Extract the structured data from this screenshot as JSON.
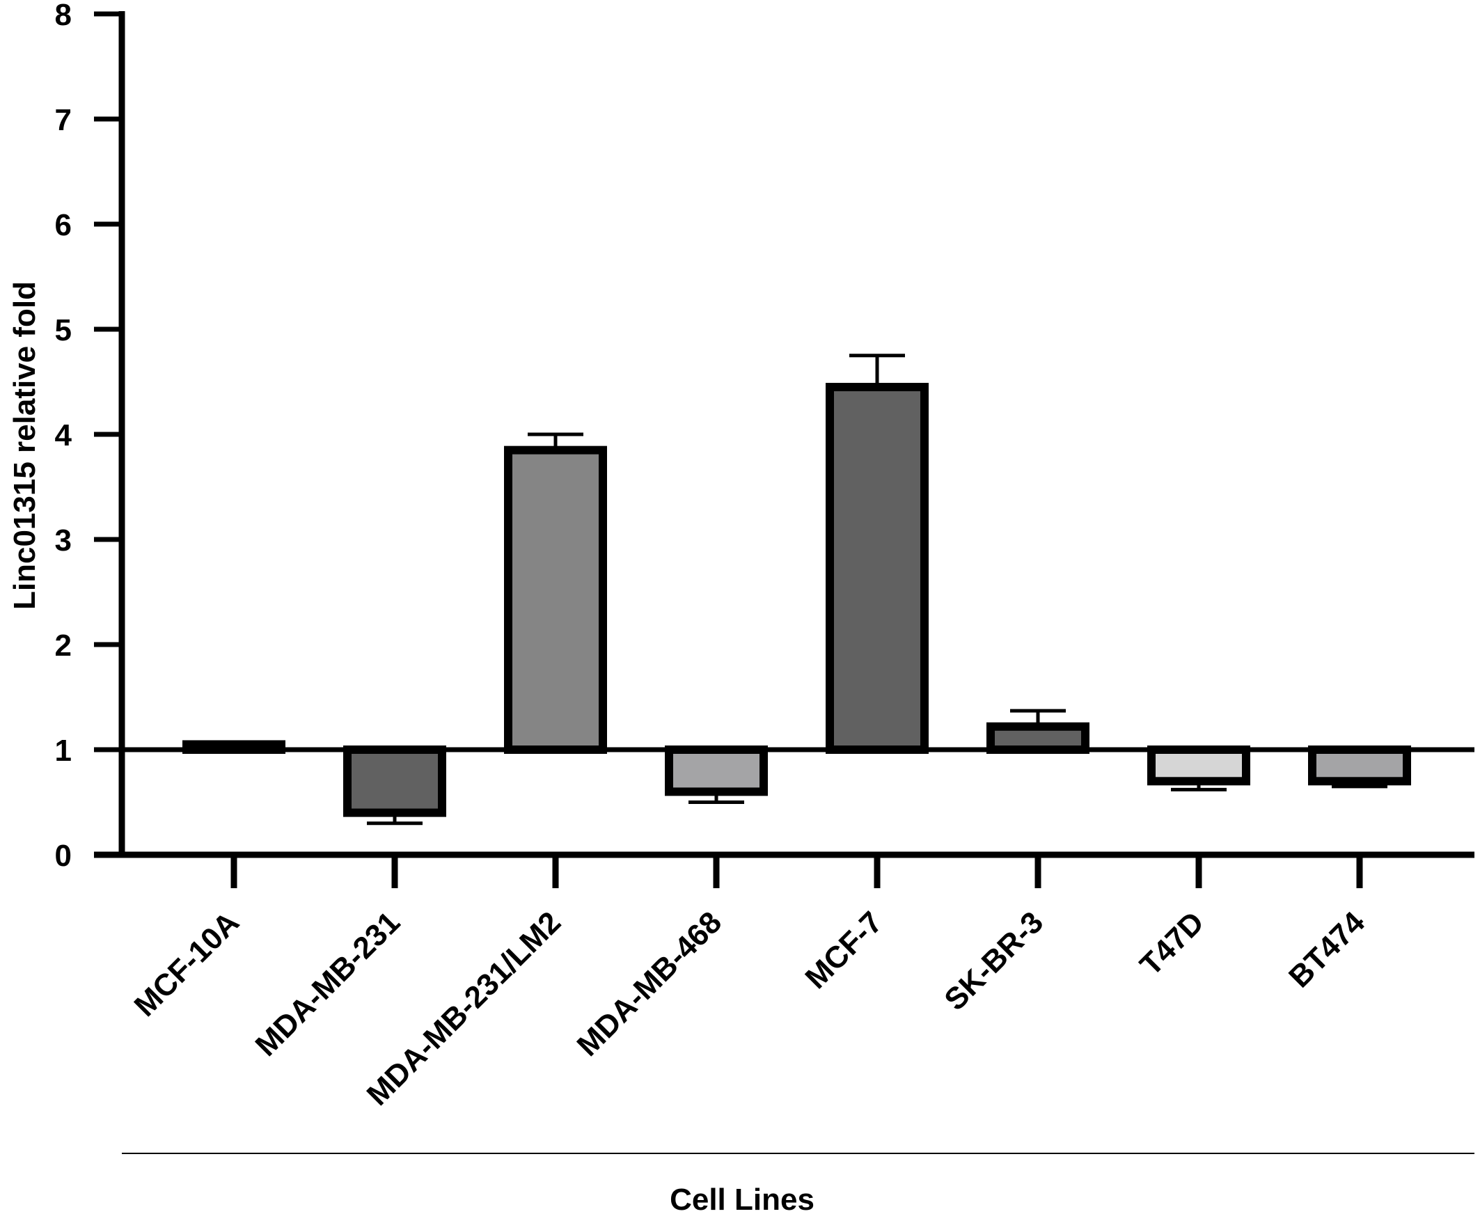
{
  "chart_data": {
    "type": "bar",
    "title": "",
    "xlabel": "Cell Lines",
    "ylabel": "Linc01315 relative fold",
    "ylim": [
      0,
      8
    ],
    "yticks": [
      0,
      1,
      2,
      3,
      4,
      5,
      6,
      7,
      8
    ],
    "baseline": 1,
    "categories": [
      "MCF-10A",
      "MDA-MB-231",
      "MDA-MB-231/LM2",
      "MDA-MB-468",
      "MCF-7",
      "SK-BR-3",
      "T47D",
      "BT474"
    ],
    "values": [
      1.05,
      0.4,
      3.85,
      0.6,
      4.45,
      1.22,
      0.7,
      0.7
    ],
    "errors": [
      0.02,
      0.1,
      0.15,
      0.1,
      0.3,
      0.15,
      0.08,
      0.05
    ],
    "colors": [
      "#3d3d3d",
      "#616161",
      "#858585",
      "#a4a4a6",
      "#616161",
      "#616161",
      "#d6d6d6",
      "#a4a4a6"
    ],
    "grid": false,
    "legend": "none"
  }
}
